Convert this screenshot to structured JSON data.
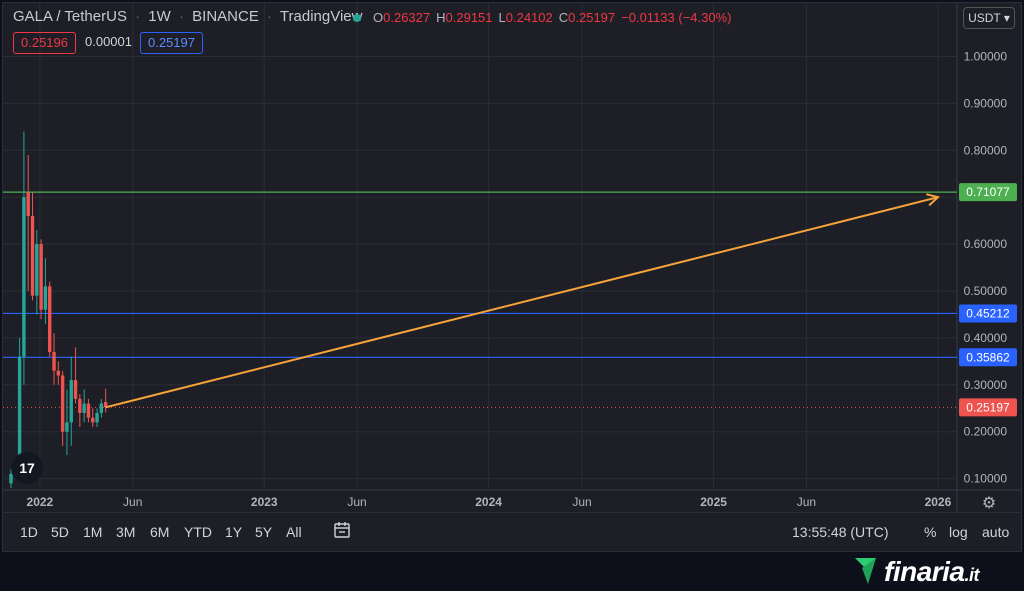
{
  "header": {
    "pair": "GALA / TetherUS",
    "interval": "1W",
    "exchange": "BINANCE",
    "source": "TradingView"
  },
  "ohlc": {
    "open_label": "O",
    "open": "0.26327",
    "high_label": "H",
    "high": "0.29151",
    "low_label": "L",
    "low": "0.24102",
    "close_label": "C",
    "close": "0.25197",
    "change": "−0.01133 (−4.30%)"
  },
  "price_boxes": {
    "bid": "0.25196",
    "spread": "0.00001",
    "ask": "0.25197"
  },
  "currency_selector": "USDT",
  "timeframes": [
    "1D",
    "5D",
    "1M",
    "3M",
    "6M",
    "YTD",
    "1Y",
    "5Y",
    "All"
  ],
  "clock": "13:55:48 (UTC)",
  "scale_options": {
    "percent": "%",
    "log": "log",
    "auto": "auto"
  },
  "branding": {
    "name": "finaria",
    "tld": ".it"
  },
  "colors": {
    "up": "#26a69a",
    "down": "#ef5350",
    "arrow": "#f7a33b",
    "green_line": "#4caf50",
    "blue_line": "#2962ff",
    "current_price": "#ef5350"
  },
  "chart_data": {
    "type": "candlestick",
    "y_axis": {
      "range": [
        0.08,
        1.05
      ],
      "ticks": [
        "1.00000",
        "0.90000",
        "0.80000",
        "0.70000",
        "0.60000",
        "0.50000",
        "0.40000",
        "0.30000",
        "0.20000",
        "0.10000"
      ],
      "tick_values": [
        1.0,
        0.9,
        0.8,
        0.7,
        0.6,
        0.5,
        0.4,
        0.3,
        0.2,
        0.1
      ]
    },
    "x_axis": {
      "range": [
        "2021-11-15",
        "2026-02-01"
      ],
      "ticks": [
        {
          "date": "2022-01-01",
          "label": "2022",
          "bold": true
        },
        {
          "date": "2022-06-01",
          "label": "Jun",
          "bold": false
        },
        {
          "date": "2023-01-01",
          "label": "2023",
          "bold": true
        },
        {
          "date": "2023-06-01",
          "label": "Jun",
          "bold": false
        },
        {
          "date": "2024-01-01",
          "label": "2024",
          "bold": true
        },
        {
          "date": "2024-06-01",
          "label": "Jun",
          "bold": false
        },
        {
          "date": "2025-01-01",
          "label": "2025",
          "bold": true
        },
        {
          "date": "2025-06-01",
          "label": "Jun",
          "bold": false
        },
        {
          "date": "2026-01-01",
          "label": "2026",
          "bold": true
        }
      ]
    },
    "candles": [
      {
        "date": "2021-11-15",
        "o": 0.09,
        "h": 0.12,
        "l": 0.08,
        "c": 0.11
      },
      {
        "date": "2021-11-22",
        "o": 0.11,
        "h": 0.14,
        "l": 0.1,
        "c": 0.13
      },
      {
        "date": "2021-11-29",
        "o": 0.13,
        "h": 0.4,
        "l": 0.12,
        "c": 0.36
      },
      {
        "date": "2021-12-06",
        "o": 0.36,
        "h": 0.84,
        "l": 0.3,
        "c": 0.7
      },
      {
        "date": "2021-12-13",
        "o": 0.71,
        "h": 0.79,
        "l": 0.5,
        "c": 0.66
      },
      {
        "date": "2021-12-20",
        "o": 0.66,
        "h": 0.71,
        "l": 0.48,
        "c": 0.49
      },
      {
        "date": "2021-12-27",
        "o": 0.49,
        "h": 0.63,
        "l": 0.45,
        "c": 0.6
      },
      {
        "date": "2022-01-03",
        "o": 0.6,
        "h": 0.61,
        "l": 0.44,
        "c": 0.46
      },
      {
        "date": "2022-01-10",
        "o": 0.46,
        "h": 0.57,
        "l": 0.43,
        "c": 0.51
      },
      {
        "date": "2022-01-17",
        "o": 0.51,
        "h": 0.52,
        "l": 0.36,
        "c": 0.37
      },
      {
        "date": "2022-01-24",
        "o": 0.37,
        "h": 0.41,
        "l": 0.3,
        "c": 0.33
      },
      {
        "date": "2022-01-31",
        "o": 0.33,
        "h": 0.35,
        "l": 0.3,
        "c": 0.32
      },
      {
        "date": "2022-02-07",
        "o": 0.32,
        "h": 0.33,
        "l": 0.17,
        "c": 0.2
      },
      {
        "date": "2022-02-14",
        "o": 0.2,
        "h": 0.29,
        "l": 0.15,
        "c": 0.22
      },
      {
        "date": "2022-02-21",
        "o": 0.22,
        "h": 0.36,
        "l": 0.17,
        "c": 0.31
      },
      {
        "date": "2022-02-28",
        "o": 0.31,
        "h": 0.38,
        "l": 0.26,
        "c": 0.27
      },
      {
        "date": "2022-03-07",
        "o": 0.27,
        "h": 0.28,
        "l": 0.21,
        "c": 0.24
      },
      {
        "date": "2022-03-14",
        "o": 0.24,
        "h": 0.29,
        "l": 0.22,
        "c": 0.26
      },
      {
        "date": "2022-03-21",
        "o": 0.26,
        "h": 0.27,
        "l": 0.22,
        "c": 0.23
      },
      {
        "date": "2022-03-28",
        "o": 0.23,
        "h": 0.25,
        "l": 0.21,
        "c": 0.22
      },
      {
        "date": "2022-04-04",
        "o": 0.22,
        "h": 0.25,
        "l": 0.21,
        "c": 0.24
      },
      {
        "date": "2022-04-11",
        "o": 0.24,
        "h": 0.27,
        "l": 0.23,
        "c": 0.26
      },
      {
        "date": "2022-04-18",
        "o": 0.26327,
        "h": 0.29151,
        "l": 0.24102,
        "c": 0.25197
      }
    ],
    "horizontal_lines": [
      {
        "value": 0.71077,
        "label": "0.71077",
        "color": "#4caf50"
      },
      {
        "value": 0.45212,
        "label": "0.45212",
        "color": "#2962ff"
      },
      {
        "value": 0.35862,
        "label": "0.35862",
        "color": "#2962ff"
      }
    ],
    "current_price": {
      "value": 0.25197,
      "label": "0.25197",
      "color": "#ef5350"
    },
    "trend_arrow": {
      "from": {
        "date": "2022-04-18",
        "value": 0.25197
      },
      "to": {
        "date": "2026-01-01",
        "value": 0.7
      },
      "color": "#f7a33b"
    }
  }
}
